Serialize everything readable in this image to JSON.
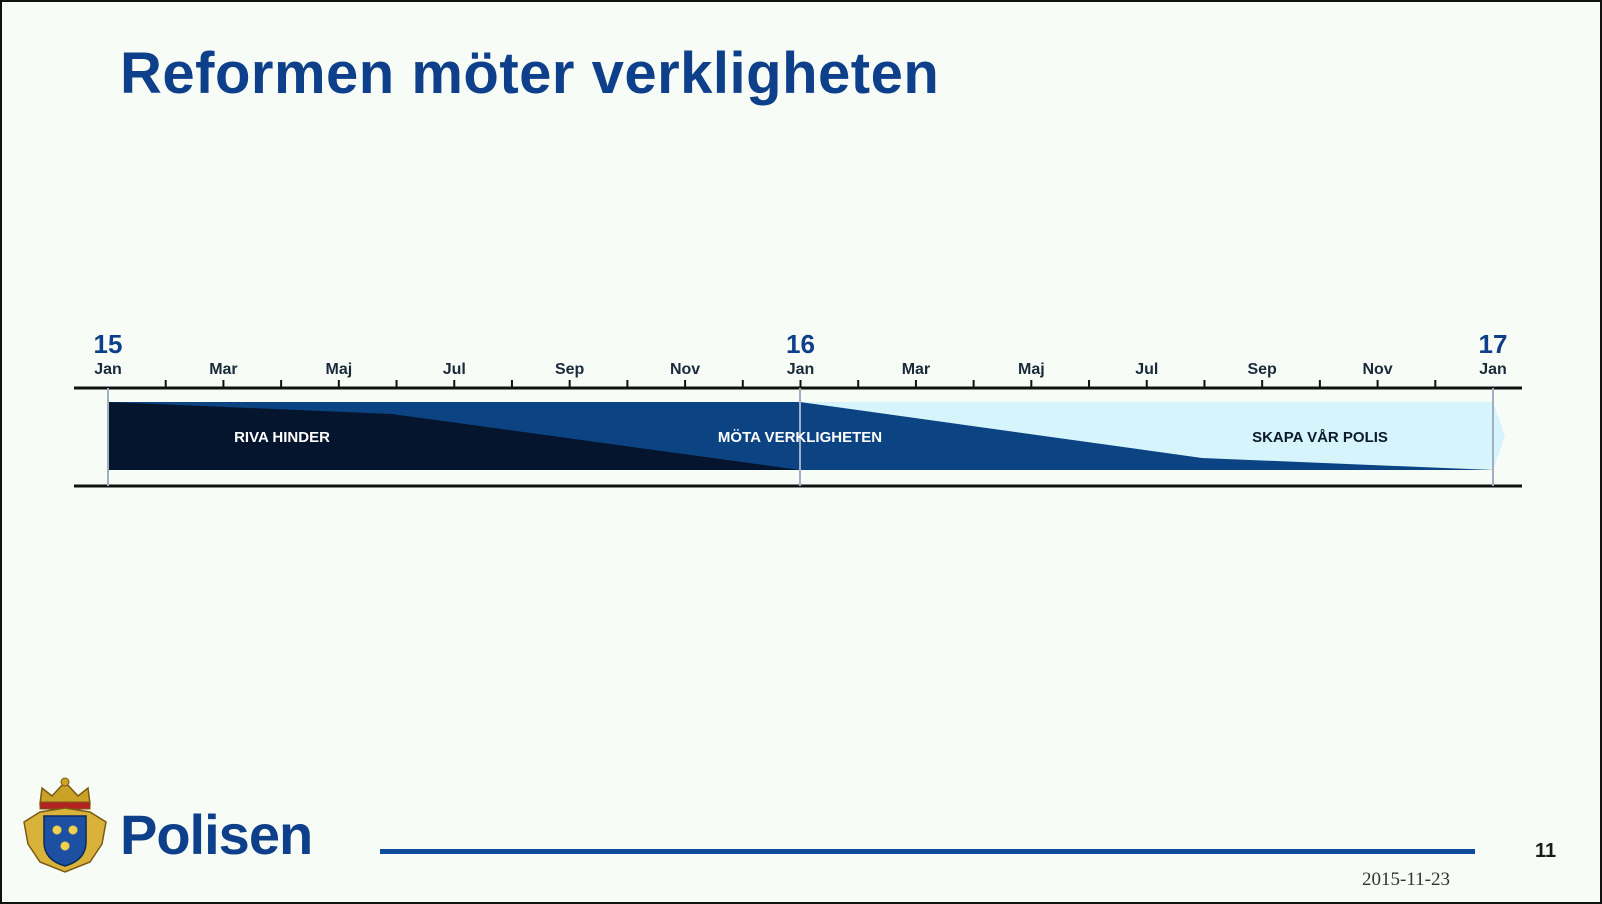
{
  "slide": {
    "title": "Reformen möter verkligheten",
    "brand": "Polisen",
    "page_number": "11",
    "date": "2015-11-23"
  },
  "timeline": {
    "year_labels": [
      "15",
      "16",
      "17"
    ],
    "month_labels": [
      "Jan",
      "Mar",
      "Maj",
      "Jul",
      "Sep",
      "Nov",
      "Jan",
      "Mar",
      "Maj",
      "Jul",
      "Sep",
      "Nov",
      "Jan"
    ],
    "phases": [
      {
        "label": "RIVA HINDER",
        "color": "#06152e",
        "text_color": "#ffffff"
      },
      {
        "label": "MÖTA VERKLIGHETEN",
        "color": "#0b4383",
        "text_color": "#ffffff"
      },
      {
        "label": "SKAPA VÅR POLIS",
        "color": "#d6f4fb",
        "text_color": "#0a1a2a"
      }
    ]
  },
  "colors": {
    "title": "#0d3f8a",
    "footer_line": "#0d4c9c",
    "axis": "#111111"
  }
}
